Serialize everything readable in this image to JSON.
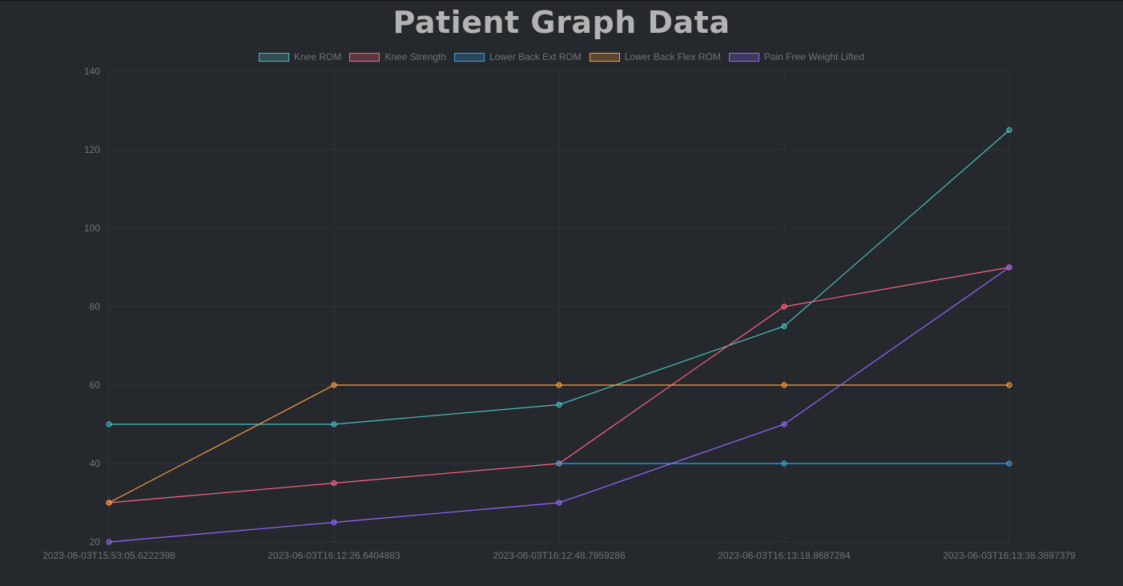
{
  "page": {
    "title": "Patient Graph Data"
  },
  "chart_data": {
    "type": "line",
    "title": "",
    "xlabel": "",
    "ylabel": "",
    "ylim": [
      20,
      140
    ],
    "yticks": [
      20,
      40,
      60,
      80,
      100,
      120,
      140
    ],
    "grid": true,
    "legend": "top",
    "categories": [
      "2023-06-03T15:53:05.6222398",
      "2023-06-03T16:12:26.6404883",
      "2023-06-03T16:12:48.7959286",
      "2023-06-03T16:13:18.8687284",
      "2023-06-03T16:13:38.3897379"
    ],
    "series": [
      {
        "name": "Knee ROM",
        "color": "#4bc0c0",
        "values": [
          50,
          50,
          55,
          75,
          125
        ]
      },
      {
        "name": "Knee Strength",
        "color": "#ff6384",
        "values": [
          30,
          35,
          40,
          80,
          90
        ]
      },
      {
        "name": "Lower Back Ext ROM",
        "color": "#36a2eb",
        "values": [
          null,
          null,
          40,
          40,
          40
        ]
      },
      {
        "name": "Lower Back Flex ROM",
        "color": "#ff9f40",
        "values": [
          30,
          60,
          60,
          60,
          60
        ]
      },
      {
        "name": "Pain Free Weight Lifted",
        "color": "#9966ff",
        "values": [
          20,
          25,
          30,
          50,
          90
        ]
      }
    ]
  }
}
